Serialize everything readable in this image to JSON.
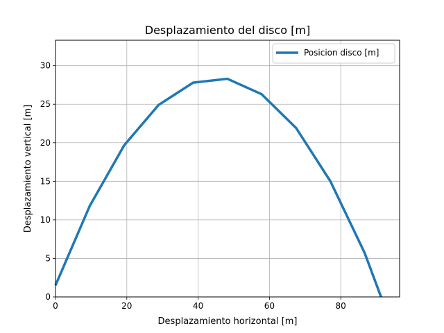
{
  "chart_data": {
    "type": "line",
    "title": "Desplazamiento del disco [m]",
    "xlabel": "Desplazamiento horizontal [m]",
    "ylabel": "Desplazamiento vertical [m]",
    "xlim": [
      0,
      96.5
    ],
    "ylim": [
      0,
      33.3
    ],
    "xticks": [
      0,
      20,
      40,
      60,
      80
    ],
    "yticks": [
      0,
      5,
      10,
      15,
      20,
      25,
      30
    ],
    "xtick_labels": [
      "0",
      "20",
      "40",
      "60",
      "80"
    ],
    "ytick_labels": [
      "0",
      "5",
      "10",
      "15",
      "20",
      "25",
      "30"
    ],
    "grid": true,
    "legend_position": "top-right",
    "series": [
      {
        "name": "Posicion disco [m]",
        "color": "#1f77b4",
        "x": [
          0,
          9.6,
          19.3,
          28.9,
          38.6,
          48.2,
          57.8,
          67.5,
          77.1,
          86.7,
          91.3
        ],
        "y": [
          1.5,
          11.8,
          19.7,
          24.9,
          27.8,
          28.3,
          26.3,
          21.9,
          15.0,
          5.7,
          0
        ]
      }
    ]
  }
}
